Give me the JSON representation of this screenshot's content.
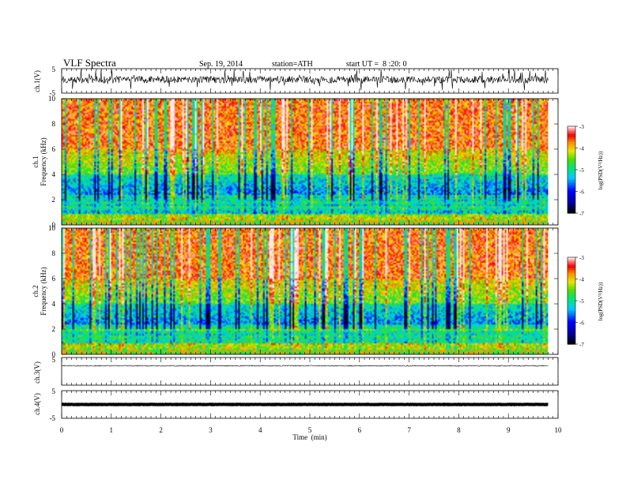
{
  "header": {
    "title": "VLF Spectra",
    "date": "Sep. 19, 2014",
    "station": "station=ATH",
    "start": "start UT =  8 :20: 0"
  },
  "chart_data": [
    {
      "type": "line",
      "panel": "ch1-waveform",
      "ylabel": "ch.1(V)",
      "yticks": [
        "5",
        "-5"
      ],
      "ylim": [
        -5,
        5
      ],
      "series": [
        {
          "x": [
            0,
            9.8
          ],
          "values": [
            0.5,
            0.5
          ]
        }
      ]
    },
    {
      "type": "heatmap",
      "panel": "ch1-spectrogram",
      "ylabel": [
        "ch.1",
        "Frequency  (kHz)"
      ],
      "yticks": [
        "0",
        "2",
        "4",
        "6",
        "8",
        "10"
      ],
      "ylim": [
        0,
        10
      ],
      "xlim": [
        0,
        10
      ],
      "colorbar": {
        "label": "log(PSD(V²/Hz))",
        "ticks": [
          "-3",
          "-4",
          "-5",
          "-6",
          "-7"
        ],
        "range": [
          -7,
          -3
        ]
      }
    },
    {
      "type": "heatmap",
      "panel": "ch2-spectrogram",
      "ylabel": [
        "ch.2",
        "Frequency  (kHz)"
      ],
      "yticks": [
        "0",
        "2",
        "4",
        "6",
        "8",
        "10"
      ],
      "ylim": [
        0,
        10
      ],
      "xlim": [
        0,
        10
      ],
      "colorbar": {
        "label": "log(PSD(V²/Hz))",
        "ticks": [
          "-3",
          "-4",
          "-5",
          "-6",
          "-7"
        ],
        "range": [
          -7,
          -3
        ]
      }
    },
    {
      "type": "line",
      "panel": "ch3-waveform",
      "ylabel": "ch.3(V)",
      "yticks": [
        "5",
        "-5"
      ],
      "ylim": [
        -5,
        5
      ],
      "series": [
        {
          "x": [
            0,
            9.8
          ],
          "values": [
            2,
            2
          ]
        }
      ]
    },
    {
      "type": "line",
      "panel": "ch4-waveform",
      "ylabel": "ch.4(V)",
      "yticks": [
        "5",
        "-5"
      ],
      "ylim": [
        -5,
        5
      ],
      "series": [
        {
          "x": [
            0,
            9.8
          ],
          "values": [
            0,
            0
          ]
        }
      ]
    },
    {
      "type": "axis",
      "panel": "time-axis",
      "xlabel": "Time  (min)",
      "xticks": [
        "0",
        "1",
        "2",
        "3",
        "4",
        "5",
        "6",
        "7",
        "8",
        "9",
        "10"
      ],
      "xlim": [
        0,
        10
      ]
    }
  ]
}
